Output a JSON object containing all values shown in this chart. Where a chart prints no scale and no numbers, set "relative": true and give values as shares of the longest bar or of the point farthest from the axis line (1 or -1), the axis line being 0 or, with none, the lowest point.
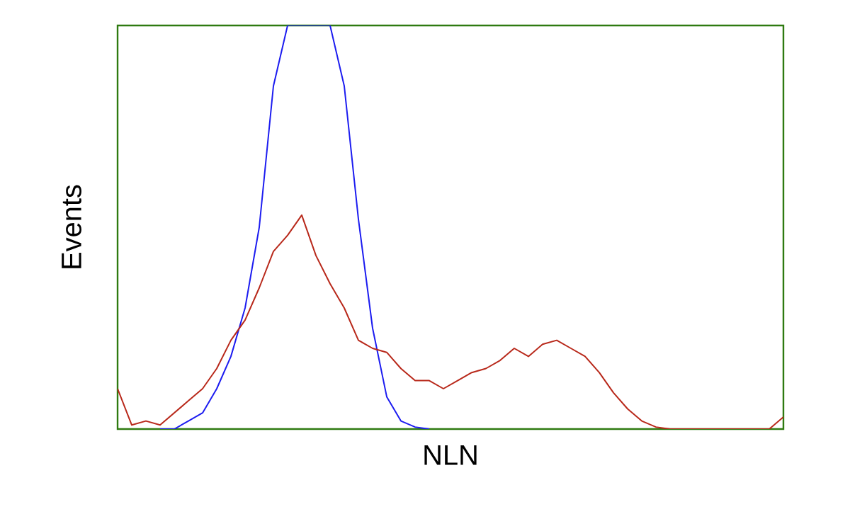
{
  "chart_data": {
    "type": "line",
    "relative": true,
    "xlabel": "NLN",
    "ylabel": "Events",
    "categories": [
      null,
      null,
      null,
      null,
      null,
      null,
      null,
      null,
      null,
      null,
      null,
      null,
      null,
      null,
      null,
      null,
      null,
      null,
      null,
      null,
      null,
      null,
      null,
      null,
      null,
      null,
      null,
      null,
      null,
      null,
      null,
      null,
      null,
      null,
      null,
      null,
      null,
      null,
      null,
      null,
      null,
      null,
      null,
      null,
      null,
      null,
      null,
      null
    ],
    "series": [
      {
        "color": "#1c1cf0",
        "values": [
          null,
          null,
          null,
          0,
          0,
          0.02,
          0.04,
          0.1,
          0.18,
          0.3,
          0.5,
          0.85,
          1,
          1,
          1,
          1,
          0.85,
          0.52,
          0.25,
          0.08,
          0.02,
          0.005,
          0,
          null,
          null,
          null,
          null,
          null,
          null,
          null,
          null,
          null,
          null,
          null,
          null,
          null,
          null,
          null,
          null,
          null,
          null,
          null,
          null,
          null,
          null,
          null,
          null,
          null
        ]
      },
      {
        "color": "#b8281a",
        "values": [
          0.1,
          0.01,
          0.02,
          0.01,
          0.04,
          0.07,
          0.1,
          0.15,
          0.22,
          0.27,
          0.35,
          0.44,
          0.48,
          0.53,
          0.43,
          0.36,
          0.3,
          0.22,
          0.2,
          0.19,
          0.15,
          0.12,
          0.12,
          0.1,
          0.12,
          0.14,
          0.15,
          0.17,
          0.2,
          0.18,
          0.21,
          0.22,
          0.2,
          0.18,
          0.14,
          0.09,
          0.05,
          0.02,
          0.005,
          0,
          0,
          0,
          0,
          0,
          0,
          0,
          0,
          0.03
        ]
      }
    ]
  }
}
